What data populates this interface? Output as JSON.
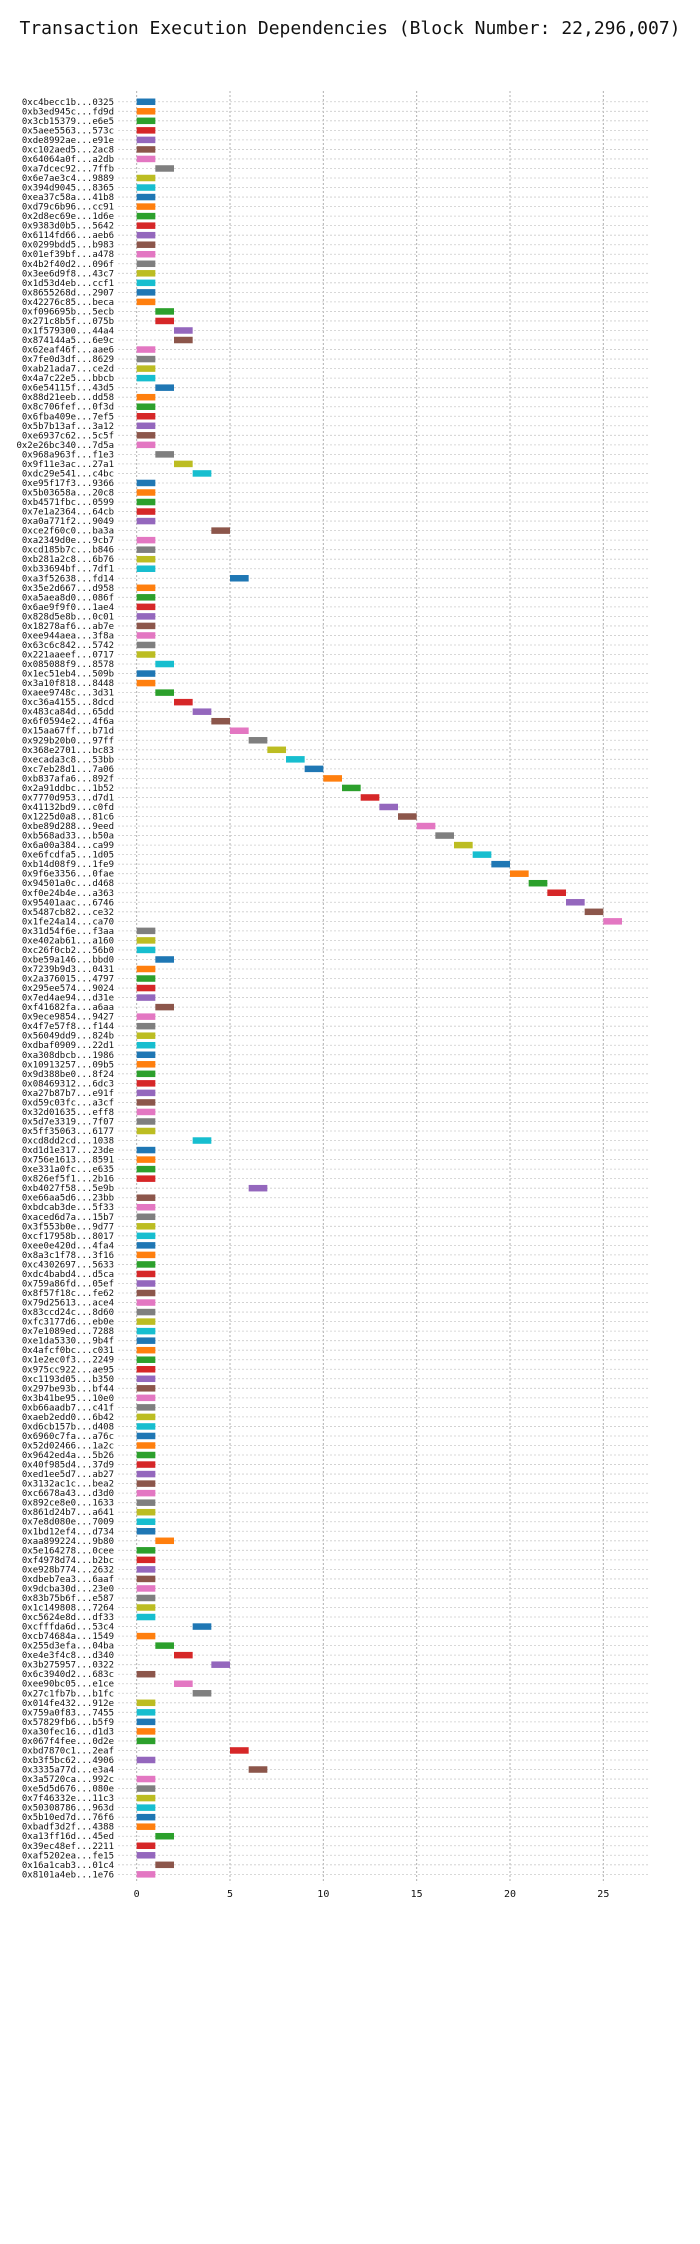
{
  "chart_data": {
    "type": "bar",
    "orientation": "horizontal",
    "title": "Transaction Execution Dependencies (Block Number: 22,296,007)",
    "xlim": [
      -1,
      27.5
    ],
    "x_ticks": [
      0,
      5,
      10,
      15,
      20,
      25
    ],
    "grid": true,
    "palette": [
      "#1f77b4",
      "#ff7f0e",
      "#2ca02c",
      "#d62728",
      "#9467bd",
      "#8c564b",
      "#e377c2",
      "#7f7f7f",
      "#bcbd22",
      "#17becf"
    ],
    "transactions": [
      "0xc4becc1b...0325",
      "0xb3ed945c...fd9d",
      "0x3cb15379...e6e5",
      "0x5aee5563...573c",
      "0xde8992ae...e91e",
      "0xc102aed5...2ac8",
      "0x64064a0f...a2db",
      "0xa7dcec92...7ffb",
      "0x6e7ae3c4...9889",
      "0x394d9045...8365",
      "0xea37c58a...41b8",
      "0xd79c6b96...cc91",
      "0x2d8ec69e...1d6e",
      "0x9383d0b5...5642",
      "0x6114fd66...aeb6",
      "0x0299bdd5...b983",
      "0x01ef39bf...a478",
      "0x4b2f40d2...096f",
      "0x3ee6d9f8...43c7",
      "0x1d53d4eb...ccf1",
      "0x8655268d...2907",
      "0x42276c85...beca",
      "0xf096695b...5ecb",
      "0x271c8b5f...075b",
      "0x1f579300...44a4",
      "0x874144a5...6e9c",
      "0x62eaf46f...aae6",
      "0x7fe0d3df...8629",
      "0xab21ada7...ce2d",
      "0x4a7c22e5...bbcb",
      "0x6e54115f...43d5",
      "0x88d21eeb...dd58",
      "0x8c706fef...0f3d",
      "0x6fba409e...7ef5",
      "0x5b7b13af...3a12",
      "0xe6937c62...5c5f",
      "0x2e26bc340...7d5a",
      "0x968a963f...f1e3",
      "0x9f11e3ac...27a1",
      "0xdc29e541...c4bc",
      "0xe95f17f3...9366",
      "0x5b03658a...20c8",
      "0xb4571fbc...0599",
      "0x7e1a2364...64cb",
      "0xa0a771f2...9049",
      "0xce2f60c0...ba3a",
      "0xa2349d0e...9cb7",
      "0xcd185b7c...b846",
      "0xb281a2c8...6b76",
      "0xb33694bf...7df1",
      "0xa3f52638...fd14",
      "0x35e2d667...d958",
      "0xa5aea8d0...086f",
      "0x6ae9f9f0...1ae4",
      "0x828d5e8b...0c01",
      "0x18278af6...ab7e",
      "0xee944aea...3f8a",
      "0x63c6c842...5742",
      "0x221aaeef...0717",
      "0x085088f9...8578",
      "0x1ec51eb4...509b",
      "0x3a10f818...8448",
      "0xaee9748c...3d31",
      "0xc36a4155...8dcd",
      "0x483ca84d...65dd",
      "0x6f0594e2...4f6a",
      "0x15aa67ff...b71d",
      "0x929b20b0...97ff",
      "0x368e2701...bc83",
      "0xecada3c8...53bb",
      "0xc7eb28d1...7a06",
      "0xb837afa6...892f",
      "0x2a91ddbc...1b52",
      "0x7770d953...d7d1",
      "0x41132bd9...c0fd",
      "0x1225d0a8...81c6",
      "0xbe89d288...9eed",
      "0xb568ad33...b50a",
      "0x6a00a384...ca99",
      "0xe6fcdfa5...1d05",
      "0xb14d08f9...1fe9",
      "0x9f6e3356...0fae",
      "0x94501a0c...d468",
      "0xf0e24b4e...a363",
      "0x95401aac...6746",
      "0x5487cb82...ce32",
      "0x1fe24a14...ca70",
      "0x31d54f6e...f3aa",
      "0xe402ab61...a160",
      "0xc26f0cb2...56b0",
      "0xbe59a146...bbd0",
      "0x7239b9d3...0431",
      "0x2a376015...4797",
      "0x295ee574...9024",
      "0x7ed4ae94...d31e",
      "0xf41682fa...a6aa",
      "0x9ece9854...9427",
      "0x4f7e57f8...f144",
      "0x56049dd9...824b",
      "0xdbaf0909...22d1",
      "0xa308dbcb...1986",
      "0x10913257...09b5",
      "0x9d388be0...8f24",
      "0x08469312...6dc3",
      "0xa27b87b7...e91f",
      "0xd59c03fc...a3cf",
      "0x32d01635...eff8",
      "0x5d7e3319...7f07",
      "0x5ff35063...6177",
      "0xcd8dd2cd...1038",
      "0xd1d1e317...23de",
      "0x756e1613...8591",
      "0xe331a0fc...e635",
      "0x826ef5f1...2b16",
      "0xb4027f58...5e9b",
      "0xe66aa5d6...23bb",
      "0xbdcab3de...5f33",
      "0xaced6d7a...15b7",
      "0x3f553b0e...9d77",
      "0xcf17958b...8017",
      "0xee0e420d...4fa4",
      "0x8a3c1f78...3f16",
      "0xc4302697...5633",
      "0xdc4babd4...d5ca",
      "0x759a86fd...05ef",
      "0x8f57f18c...fe62",
      "0x79d25613...ace4",
      "0x83ccd24c...8d60",
      "0xfc3177d6...eb0e",
      "0x7e1089ed...7288",
      "0xe1da5330...9b4f",
      "0x4afcf0bc...c031",
      "0x1e2ec0f3...2249",
      "0x975cc922...ae95",
      "0xc1193d05...b350",
      "0x297be93b...bf44",
      "0x3b41be95...10e0",
      "0xb66aadb7...c41f",
      "0xaeb2edd0...6b42",
      "0xd6cb157b...d408",
      "0x6960c7fa...a76c",
      "0x52d02466...1a2c",
      "0x9642ed4a...5b26",
      "0x40f985d4...37d9",
      "0xed1ee5d7...ab27",
      "0x3132ac1c...bea2",
      "0xc6678a43...d3d0",
      "0x892ce8e0...1633",
      "0x861d24b7...a641",
      "0x7e8d080e...7009",
      "0x1bd12ef4...d734",
      "0xaa899224...9b80",
      "0x5e164278...0cee",
      "0xf4978d74...b2bc",
      "0xe928b774...2632",
      "0xdbeb7ea3...6aaf",
      "0x9dcba30d...23e0",
      "0x83b75b6f...e587",
      "0x1c149808...7264",
      "0xc5624e8d...df33",
      "0xcfffda6d...53c4",
      "0xcb74684a...1549",
      "0x255d3efa...04ba",
      "0xe4e3f4c8...d340",
      "0x3b275957...0322",
      "0x6c3940d2...683c",
      "0xee90bc05...e1ce",
      "0x27c1fb7b...b1fc",
      "0x014fe432...912e",
      "0x759a0f83...7455",
      "0x57829fb6...b5f9",
      "0xa30fec16...d1d3",
      "0x067f4fee...0d2e",
      "0xbd7870c1...2eaf",
      "0xb3f5bc62...4906",
      "0x3335a77d...e3a4",
      "0x3a5720ca...992c",
      "0xe5d5d676...080e",
      "0x7f46332e...11c3",
      "0x50308786...963d",
      "0x5b10ed7d...76f6",
      "0xbadf3d2f...4388",
      "0xa13ff16d...45ed",
      "0x39ec48ef...2211",
      "0xaf5202ea...fe15",
      "0x16a1cab3...01c4",
      "0x8101a4eb...1e76"
    ],
    "start": [
      0,
      0,
      0,
      0,
      0,
      0,
      0,
      1,
      0,
      0,
      0,
      0,
      0,
      0,
      0,
      0,
      0,
      0,
      0,
      0,
      0,
      0,
      1,
      1,
      2,
      2,
      0,
      0,
      0,
      0,
      1,
      0,
      0,
      0,
      0,
      0,
      0,
      1,
      2,
      3,
      0,
      0,
      0,
      0,
      0,
      4,
      0,
      0,
      0,
      0,
      5,
      0,
      0,
      0,
      0,
      0,
      0,
      0,
      0,
      1,
      0,
      0,
      1,
      2,
      3,
      4,
      5,
      6,
      7,
      8,
      9,
      10,
      11,
      12,
      13,
      14,
      15,
      16,
      17,
      18,
      19,
      20,
      21,
      22,
      23,
      24,
      25,
      0,
      0,
      0,
      1,
      0,
      0,
      0,
      0,
      1,
      0,
      0,
      0,
      0,
      0,
      0,
      0,
      0,
      0,
      0,
      0,
      0,
      0,
      3,
      0,
      0,
      0,
      0,
      6,
      0,
      0,
      0,
      0,
      0,
      0,
      0,
      0,
      0,
      0,
      0,
      0,
      0,
      0,
      0,
      0,
      0,
      0,
      0,
      0,
      0,
      0,
      0,
      0,
      0,
      0,
      0,
      0,
      0,
      0,
      0,
      0,
      0,
      0,
      0,
      0,
      1,
      0,
      0,
      0,
      0,
      0,
      0,
      0,
      0,
      3,
      0,
      1,
      2,
      4,
      0,
      2,
      3,
      0,
      0,
      0,
      0,
      0,
      5,
      0,
      6,
      0,
      0,
      0,
      0,
      0,
      0,
      1,
      0,
      0,
      1,
      0
    ],
    "duration": 1
  }
}
